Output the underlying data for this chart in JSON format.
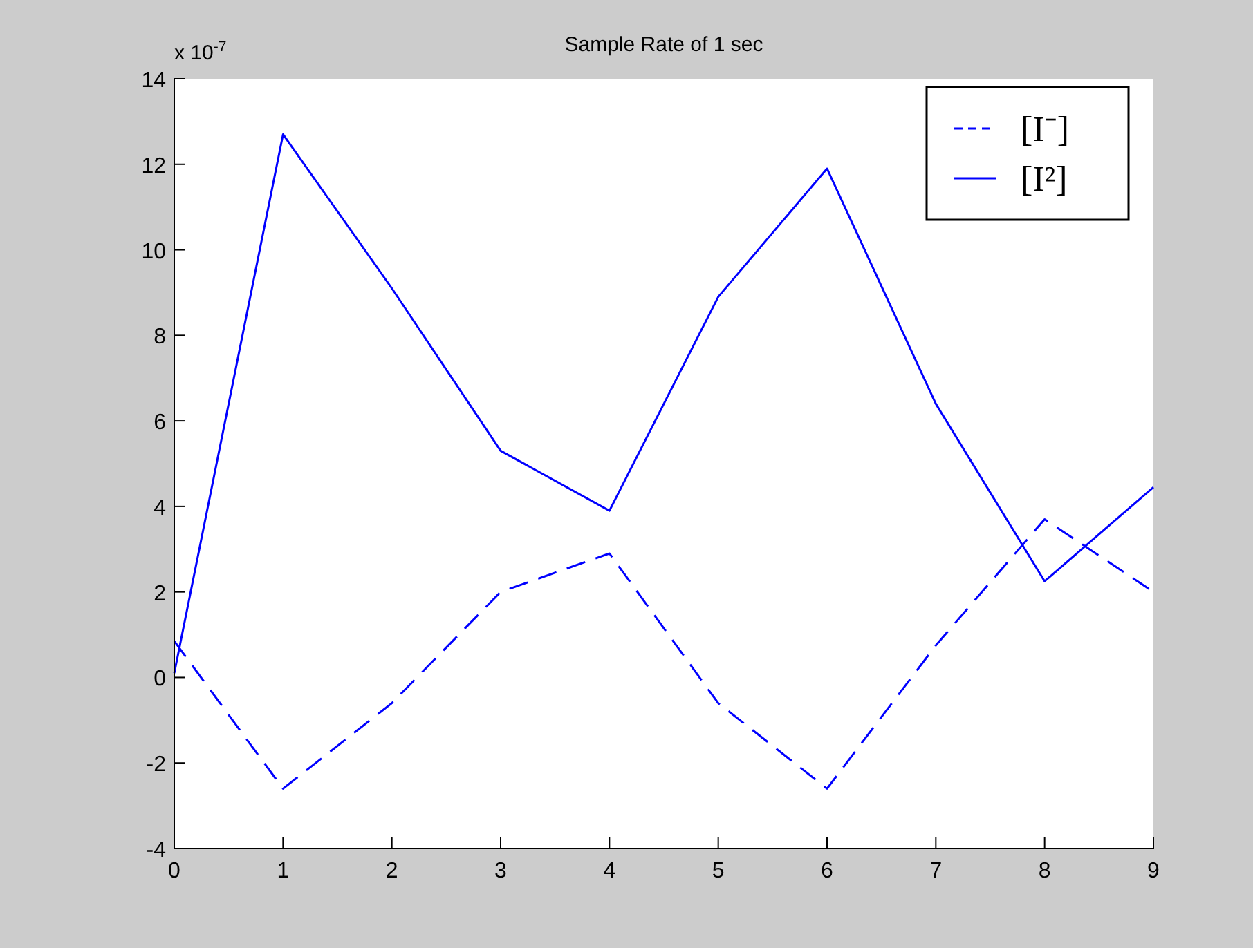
{
  "chart_data": {
    "type": "line",
    "title": "Sample Rate of 1 sec",
    "x": [
      0,
      1,
      2,
      3,
      4,
      5,
      6,
      7,
      8,
      9
    ],
    "series": [
      {
        "name": "[I⁻]",
        "color": "#0000ff",
        "line_style": "dashed",
        "values": [
          0.85,
          -2.6,
          -0.6,
          2.0,
          2.9,
          -0.6,
          -2.6,
          0.75,
          3.7,
          2.0
        ]
      },
      {
        "name": "[I²]",
        "color": "#0000ff",
        "line_style": "solid",
        "values": [
          0.1,
          12.7,
          9.1,
          5.3,
          3.9,
          8.9,
          11.9,
          6.4,
          2.25,
          4.45
        ]
      }
    ],
    "xlim": [
      0,
      9
    ],
    "xticks": [
      0,
      1,
      2,
      3,
      4,
      5,
      6,
      7,
      8,
      9
    ],
    "ylim": [
      -4,
      14
    ],
    "yticks": [
      -4,
      -2,
      0,
      2,
      4,
      6,
      8,
      10,
      12,
      14
    ],
    "annotations": [
      "x 10$^{-7}$"
    ],
    "grid": false,
    "legend": "top right",
    "marker": "none"
  }
}
